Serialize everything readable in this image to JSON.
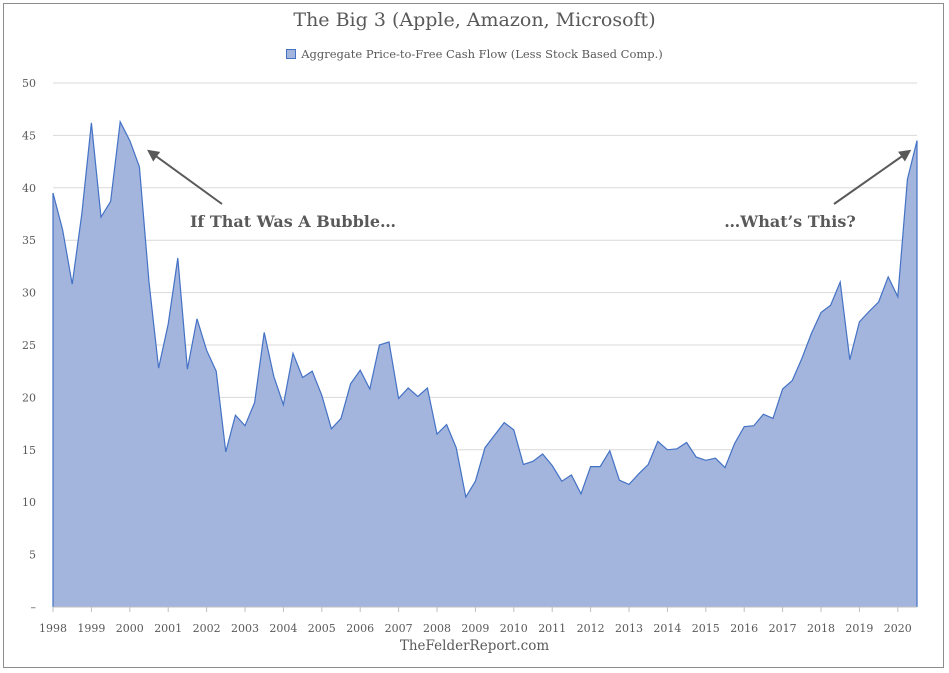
{
  "chart_data": {
    "type": "area",
    "title": "The Big 3 (Apple, Amazon, Microsoft)",
    "legend": {
      "placement": "top-center",
      "entries": [
        "Aggregate Price-to-Free Cash Flow (Less Stock Based Comp.)"
      ]
    },
    "series": [
      {
        "name": "Aggregate Price-to-Free Cash Flow (Less Stock Based Comp.)",
        "color": "#4472c4",
        "fill": "#a3b4dd",
        "values": [
          [
            1998.0,
            39.5
          ],
          [
            1998.25,
            36.0
          ],
          [
            1998.5,
            30.8
          ],
          [
            1998.75,
            37.5
          ],
          [
            1999.0,
            46.2
          ],
          [
            1999.25,
            37.2
          ],
          [
            1999.5,
            38.7
          ],
          [
            1999.75,
            46.3
          ],
          [
            2000.0,
            44.5
          ],
          [
            2000.25,
            42.0
          ],
          [
            2000.5,
            31.0
          ],
          [
            2000.75,
            22.8
          ],
          [
            2001.0,
            27.0
          ],
          [
            2001.25,
            33.3
          ],
          [
            2001.5,
            22.7
          ],
          [
            2001.75,
            27.5
          ],
          [
            2002.0,
            24.5
          ],
          [
            2002.25,
            22.5
          ],
          [
            2002.5,
            14.8
          ],
          [
            2002.75,
            18.3
          ],
          [
            2003.0,
            17.3
          ],
          [
            2003.25,
            19.5
          ],
          [
            2003.5,
            26.2
          ],
          [
            2003.75,
            22.0
          ],
          [
            2004.0,
            19.3
          ],
          [
            2004.25,
            24.2
          ],
          [
            2004.5,
            21.9
          ],
          [
            2004.75,
            22.5
          ],
          [
            2005.0,
            20.2
          ],
          [
            2005.25,
            17.0
          ],
          [
            2005.5,
            18.0
          ],
          [
            2005.75,
            21.3
          ],
          [
            2006.0,
            22.6
          ],
          [
            2006.25,
            20.8
          ],
          [
            2006.5,
            25.0
          ],
          [
            2006.75,
            25.3
          ],
          [
            2007.0,
            19.9
          ],
          [
            2007.25,
            20.9
          ],
          [
            2007.5,
            20.1
          ],
          [
            2007.75,
            20.9
          ],
          [
            2008.0,
            16.5
          ],
          [
            2008.25,
            17.4
          ],
          [
            2008.5,
            15.2
          ],
          [
            2008.75,
            10.5
          ],
          [
            2009.0,
            12.0
          ],
          [
            2009.25,
            15.2
          ],
          [
            2009.5,
            16.4
          ],
          [
            2009.75,
            17.6
          ],
          [
            2010.0,
            16.9
          ],
          [
            2010.25,
            13.6
          ],
          [
            2010.5,
            13.9
          ],
          [
            2010.75,
            14.6
          ],
          [
            2011.0,
            13.5
          ],
          [
            2011.25,
            12.0
          ],
          [
            2011.5,
            12.6
          ],
          [
            2011.75,
            10.8
          ],
          [
            2012.0,
            13.4
          ],
          [
            2012.25,
            13.4
          ],
          [
            2012.5,
            14.9
          ],
          [
            2012.75,
            12.1
          ],
          [
            2013.0,
            11.7
          ],
          [
            2013.25,
            12.7
          ],
          [
            2013.5,
            13.6
          ],
          [
            2013.75,
            15.8
          ],
          [
            2014.0,
            15.0
          ],
          [
            2014.25,
            15.1
          ],
          [
            2014.5,
            15.7
          ],
          [
            2014.75,
            14.3
          ],
          [
            2015.0,
            14.0
          ],
          [
            2015.25,
            14.2
          ],
          [
            2015.5,
            13.3
          ],
          [
            2015.75,
            15.6
          ],
          [
            2016.0,
            17.2
          ],
          [
            2016.25,
            17.3
          ],
          [
            2016.5,
            18.4
          ],
          [
            2016.75,
            18.0
          ],
          [
            2017.0,
            20.8
          ],
          [
            2017.25,
            21.6
          ],
          [
            2017.5,
            23.7
          ],
          [
            2017.75,
            26.1
          ],
          [
            2018.0,
            28.1
          ],
          [
            2018.25,
            28.8
          ],
          [
            2018.5,
            31.0
          ],
          [
            2018.75,
            23.6
          ],
          [
            2019.0,
            27.2
          ],
          [
            2019.25,
            28.2
          ],
          [
            2019.5,
            29.1
          ],
          [
            2019.75,
            31.5
          ],
          [
            2020.0,
            29.6
          ],
          [
            2020.25,
            40.8
          ],
          [
            2020.5,
            44.5
          ]
        ]
      }
    ],
    "x_ticks": [
      "1998",
      "1999",
      "2000",
      "2001",
      "2002",
      "2003",
      "2004",
      "2005",
      "2006",
      "2007",
      "2008",
      "2009",
      "2010",
      "2011",
      "2012",
      "2013",
      "2014",
      "2015",
      "2016",
      "2017",
      "2018",
      "2019",
      "2020"
    ],
    "y_ticks": [
      "–",
      "5",
      "10",
      "15",
      "20",
      "25",
      "30",
      "35",
      "40",
      "45",
      "50"
    ],
    "xlim": [
      1998,
      2020.5
    ],
    "ylim": [
      0,
      50
    ],
    "grid": true,
    "annotations": [
      {
        "text": "If  That Was A Bubble…",
        "arrow_to": [
          2000.5,
          43.5
        ]
      },
      {
        "text": "…What’s This?",
        "arrow_to": [
          2020.3,
          43.5
        ]
      }
    ]
  },
  "footer": {
    "credit": "TheFelderReport.com"
  }
}
